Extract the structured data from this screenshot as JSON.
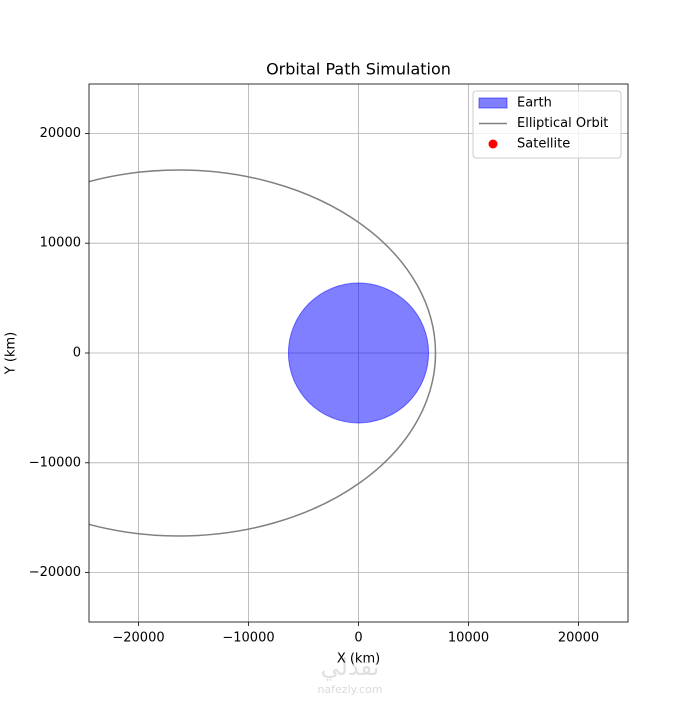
{
  "chart_data": {
    "type": "orbit",
    "title": "Orbital Path Simulation",
    "x_label": "X (km)",
    "y_label": "Y (km)",
    "xlim": [
      -24500,
      24500
    ],
    "ylim": [
      -24500,
      24500
    ],
    "xticks": [
      {
        "value": -20000,
        "label": "−20000"
      },
      {
        "value": -10000,
        "label": "−10000"
      },
      0,
      10000,
      20000
    ],
    "yticks": [
      {
        "value": -20000,
        "label": "−20000"
      },
      {
        "value": -10000,
        "label": "−10000"
      },
      0,
      10000,
      20000
    ],
    "grid": true,
    "legend": "upper right",
    "series": [
      {
        "name": "Earth",
        "kind": "circle",
        "color": "#0000ff",
        "opacity": 0.5,
        "center": [
          0,
          0
        ],
        "radius": 6371
      },
      {
        "name": "Elliptical Orbit",
        "kind": "ellipse",
        "color": "#808080",
        "center": [
          -16333,
          0
        ],
        "semi_axes": [
          23333,
          16664
        ]
      },
      {
        "name": "Satellite",
        "kind": "point",
        "color": "#ff0000"
      }
    ]
  },
  "watermark": {
    "text": "نفذلي",
    "url": "nafezly.com"
  }
}
